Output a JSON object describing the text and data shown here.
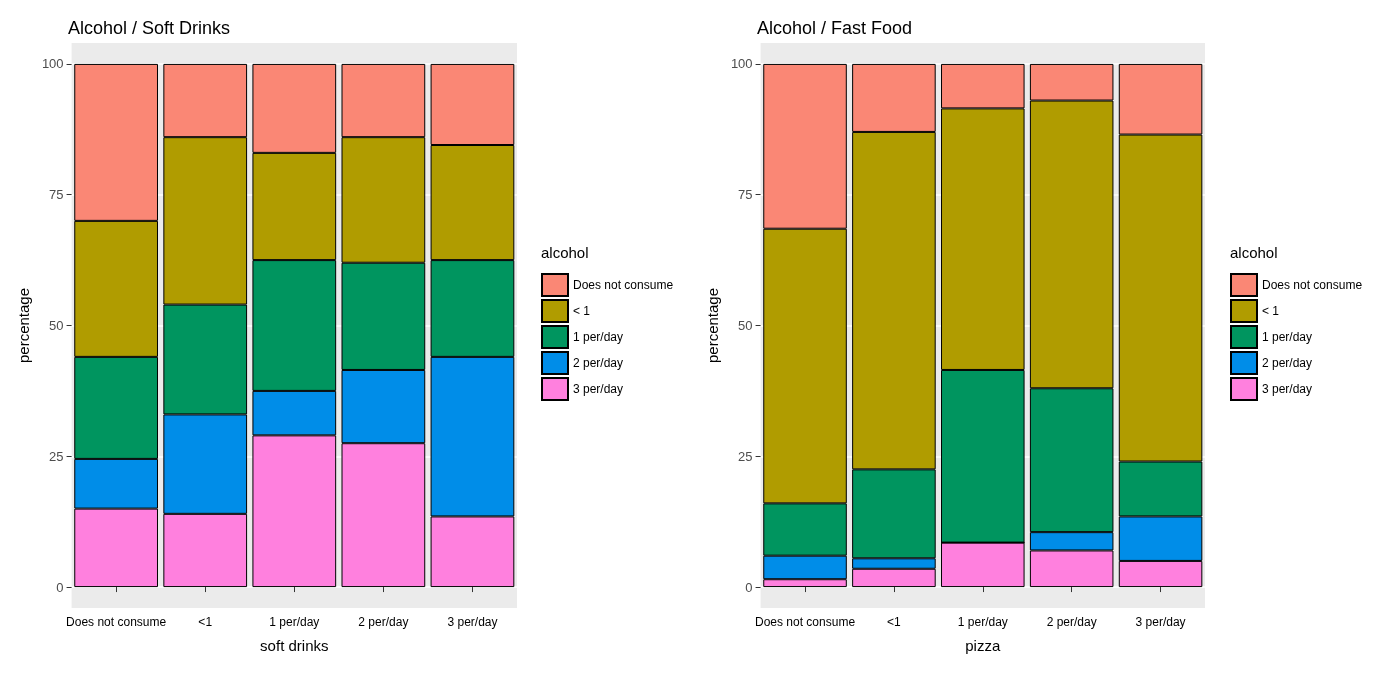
{
  "chart_data": [
    {
      "type": "bar",
      "title": "Alcohol / Soft Drinks",
      "xlabel": "soft drinks",
      "ylabel": "percentage",
      "legend_title": "alcohol",
      "categories": [
        "Does not consume",
        "<1",
        "1 per/day",
        "2 per/day",
        "3 per/day"
      ],
      "stacked": true,
      "ylim": [
        -4,
        104
      ],
      "yticks": [
        0,
        25,
        50,
        75,
        100
      ],
      "grid": "y",
      "legend": "right",
      "series": [
        {
          "name": "3 per/day",
          "color": "#ff80de",
          "values": [
            15,
            14,
            29,
            27.5,
            13.5
          ]
        },
        {
          "name": "2 per/day",
          "color": "#008de8",
          "values": [
            9.5,
            19,
            8.5,
            14,
            30.5
          ]
        },
        {
          "name": "1 per/day",
          "color": "#00955f",
          "values": [
            19.5,
            21,
            25,
            20.5,
            18.5
          ]
        },
        {
          "name": "< 1",
          "color": "#b09c00",
          "values": [
            26,
            32,
            20.5,
            24,
            22
          ]
        },
        {
          "name": "Does not consume",
          "color": "#fa8775",
          "values": [
            30,
            14,
            17,
            14,
            15.5
          ]
        }
      ]
    },
    {
      "type": "bar",
      "title": "Alcohol / Fast Food",
      "xlabel": "pizza",
      "ylabel": "percentage",
      "legend_title": "alcohol",
      "categories": [
        "Does not consume",
        "<1",
        "1 per/day",
        "2 per/day",
        "3 per/day"
      ],
      "stacked": true,
      "ylim": [
        -4,
        104
      ],
      "yticks": [
        0,
        25,
        50,
        75,
        100
      ],
      "grid": "y",
      "legend": "right",
      "series": [
        {
          "name": "3 per/day",
          "color": "#ff80de",
          "values": [
            1.5,
            3.5,
            8.5,
            7,
            5
          ]
        },
        {
          "name": "2 per/day",
          "color": "#008de8",
          "values": [
            4.5,
            2,
            0,
            3.5,
            8.5
          ]
        },
        {
          "name": "1 per/day",
          "color": "#00955f",
          "values": [
            10,
            17,
            33,
            27.5,
            10.5
          ]
        },
        {
          "name": "< 1",
          "color": "#b09c00",
          "values": [
            52.5,
            64.5,
            50,
            55,
            62.5
          ]
        },
        {
          "name": "Does not consume",
          "color": "#fa8775",
          "values": [
            31.5,
            13,
            8.5,
            7,
            13.5
          ]
        }
      ]
    }
  ]
}
